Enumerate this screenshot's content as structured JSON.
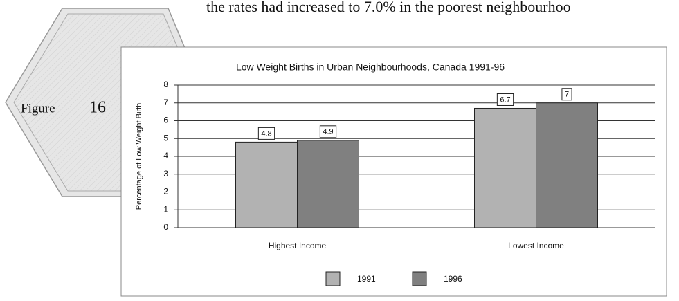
{
  "page": {
    "text": "the rates had increased to 7.0% in the poorest neighbourhoo",
    "figure_word": "Figure",
    "figure_number": "16"
  },
  "chart_data": {
    "type": "bar",
    "title": "Low Weight Births in Urban Neighbourhoods, Canada 1991-96",
    "y_label": "Percentage of Low Weight Birth",
    "categories": [
      "Highest Income",
      "Lowest Income"
    ],
    "series": [
      {
        "name": "1991",
        "color": "#b2b2b2",
        "values": [
          4.8,
          6.7
        ]
      },
      {
        "name": "1996",
        "color": "#808080",
        "values": [
          4.9,
          7
        ]
      }
    ],
    "ylim": [
      0,
      8
    ],
    "yticks": [
      0,
      1,
      2,
      3,
      4,
      5,
      6,
      7,
      8
    ],
    "grid": true,
    "legend": "bottom"
  }
}
